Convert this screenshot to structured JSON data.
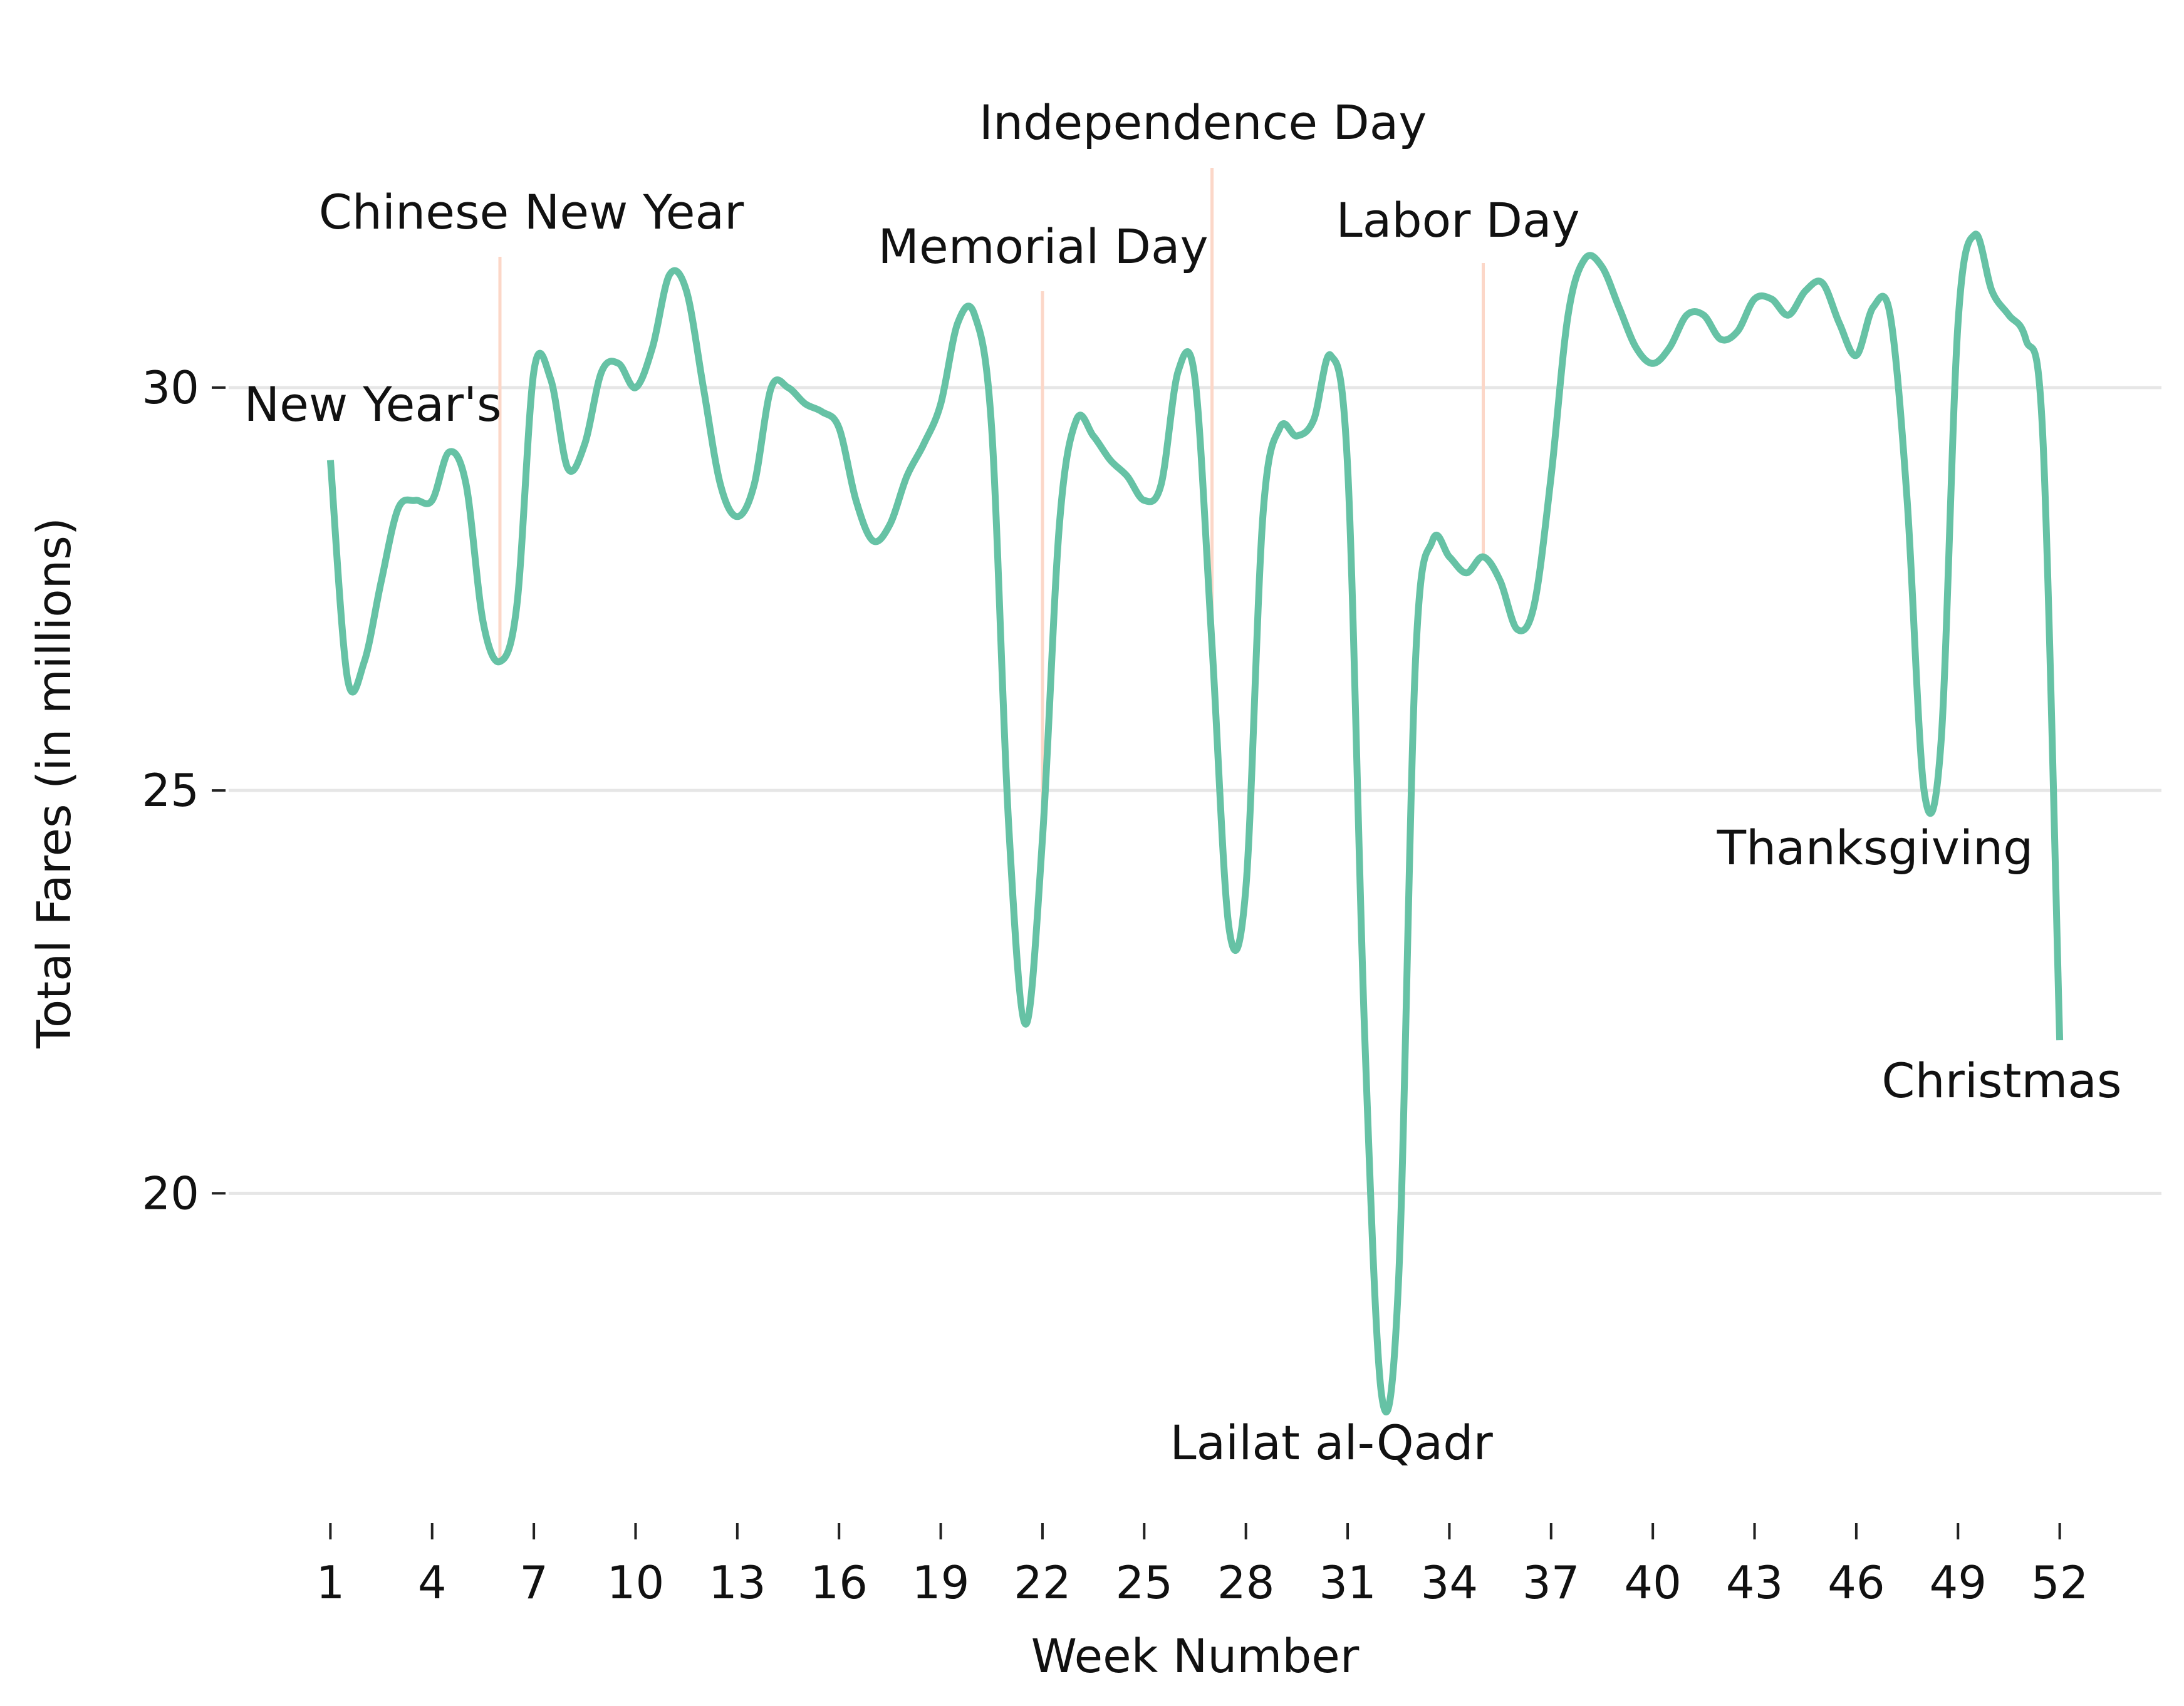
{
  "chart_data": {
    "type": "line",
    "title": "",
    "xlabel": "Week Number",
    "ylabel": "Total Fares (in millions)",
    "xlim": [
      -2,
      55
    ],
    "ylim": [
      16,
      34.5
    ],
    "xticks": [
      1,
      4,
      7,
      10,
      13,
      16,
      19,
      22,
      25,
      28,
      31,
      34,
      37,
      40,
      43,
      46,
      49,
      52
    ],
    "yticks": [
      20,
      25,
      30
    ],
    "grid": "horizontal",
    "line_color": "#66c2a5",
    "holiday_line_color": "#fcd7c8",
    "series": [
      {
        "name": "",
        "x": [
          1,
          1.5,
          2,
          2.5,
          3,
          3.5,
          4,
          4.5,
          5,
          5.5,
          6,
          6.5,
          7,
          7.5,
          8,
          8.5,
          9,
          9.5,
          10,
          10.5,
          11,
          11.5,
          12,
          12.5,
          13,
          13.5,
          14,
          14.5,
          15,
          15.5,
          16,
          16.5,
          17,
          17.5,
          18,
          18.5,
          19,
          19.5,
          20,
          20.5,
          21,
          21.5,
          22,
          22.5,
          23,
          23.5,
          24,
          24.5,
          25,
          25.5,
          26,
          26.5,
          27,
          27.5,
          28,
          28.5,
          29,
          29.5,
          30,
          30.5,
          31,
          31.5,
          32,
          32.5,
          33,
          33.5,
          34,
          34.5,
          35,
          35.5,
          36,
          36.5,
          37,
          37.5,
          38,
          38.5,
          39,
          39.5,
          40,
          40.5,
          41,
          41.5,
          42,
          42.5,
          43,
          43.5,
          44,
          44.5,
          45,
          45.5,
          46,
          46.5,
          47,
          47.5,
          48,
          48.5,
          49,
          49.5,
          50,
          50.5,
          51,
          51.5,
          52
        ],
        "y": [
          29.1,
          26.4,
          26.6,
          27.6,
          28.5,
          28.6,
          28.6,
          29.2,
          28.8,
          27.1,
          26.6,
          27.3,
          30.2,
          30.1,
          29.0,
          29.3,
          30.2,
          30.3,
          30.0,
          30.5,
          31.4,
          31.2,
          30.0,
          28.8,
          28.4,
          28.8,
          30.0,
          30.0,
          29.8,
          29.7,
          29.5,
          28.6,
          28.1,
          28.3,
          28.9,
          29.3,
          29.8,
          30.8,
          30.9,
          29.5,
          24.6,
          22.1,
          24.4,
          28.3,
          29.6,
          29.4,
          29.1,
          28.9,
          28.6,
          28.8,
          30.2,
          30.1,
          26.8,
          23.3,
          23.8,
          28.4,
          29.5,
          29.4,
          29.6,
          30.4,
          29.0,
          22.0,
          17.5,
          18.9,
          26.6,
          28.1,
          27.9,
          27.7,
          27.9,
          27.6,
          27.0,
          27.3,
          28.9,
          30.9,
          31.6,
          31.5,
          31.0,
          30.5,
          30.3,
          30.5,
          30.9,
          30.9,
          30.6,
          30.7,
          31.1,
          31.1,
          30.9,
          31.2,
          31.3,
          30.8,
          30.4,
          31.0,
          30.9,
          28.6,
          25.0,
          25.6,
          30.8,
          31.9,
          31.2,
          30.9,
          30.6,
          29.4,
          21.9
        ]
      }
    ],
    "holiday_lines": [
      6,
      22,
      27,
      35
    ],
    "annotations": [
      {
        "text": "New Year's",
        "x": 1,
        "y": 29.1
      },
      {
        "text": "Chinese New Year",
        "x": 6,
        "y": 26.6
      },
      {
        "text": "Memorial Day",
        "x": 22,
        "y": 24.4
      },
      {
        "text": "Independence Day",
        "x": 27,
        "y": 23.3
      },
      {
        "text": "Labor Day",
        "x": 35,
        "y": 27.0
      },
      {
        "text": "Lailat al-Qadr",
        "x": 31,
        "y": 17.5
      },
      {
        "text": "Thanksgiving",
        "x": 48,
        "y": 25.0
      },
      {
        "text": "Christmas",
        "x": 52,
        "y": 21.9
      }
    ]
  }
}
